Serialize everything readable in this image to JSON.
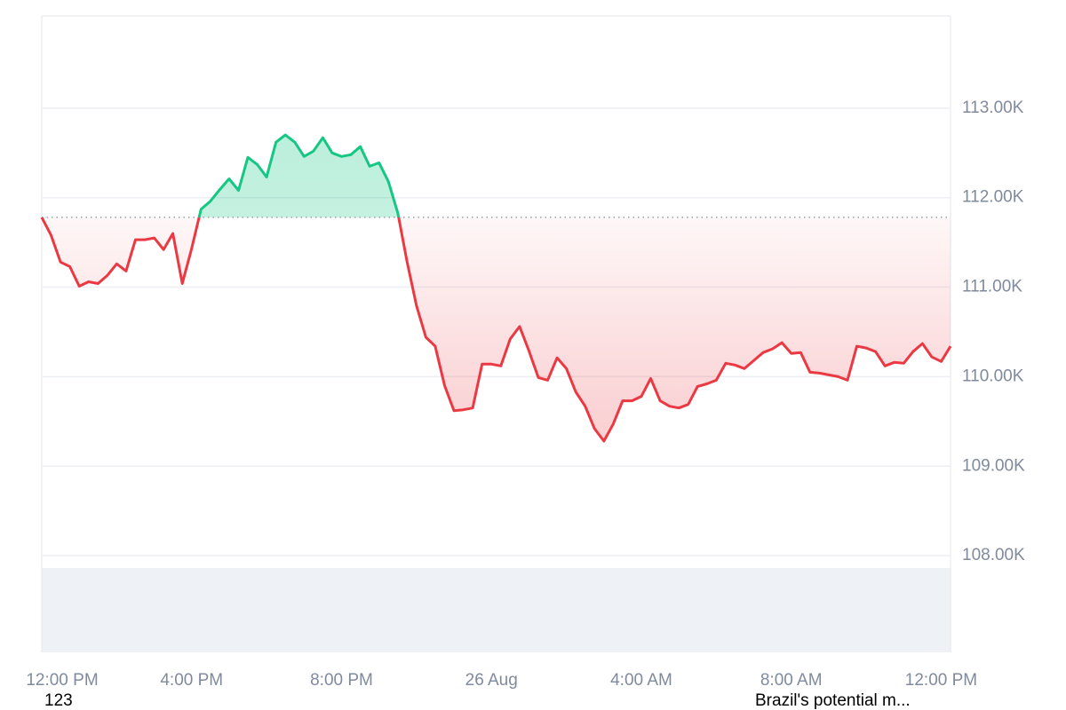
{
  "chart_data": {
    "type": "line",
    "baseline": 111.78,
    "up_color": "#16c784",
    "down_color": "#ea3943",
    "xlim": [
      0,
      24.25
    ],
    "xticks": [
      {
        "value": 0,
        "label": "12:00 PM"
      },
      {
        "value": 4,
        "label": "4:00 PM"
      },
      {
        "value": 8,
        "label": "8:00 PM"
      },
      {
        "value": 12,
        "label": "26 Aug"
      },
      {
        "value": 16,
        "label": "4:00 AM"
      },
      {
        "value": 20,
        "label": "8:00 AM"
      },
      {
        "value": 24,
        "label": "12:00 PM"
      }
    ],
    "ylim": [
      106.92,
      114.03
    ],
    "yticks": [
      {
        "value": 108,
        "label": "108.00K"
      },
      {
        "value": 109,
        "label": "109.00K"
      },
      {
        "value": 110,
        "label": "110.00K"
      },
      {
        "value": 111,
        "label": "111.00K"
      },
      {
        "value": 112,
        "label": "112.00K"
      },
      {
        "value": 113,
        "label": "113.00K"
      }
    ],
    "grid": true,
    "annotations": [
      "123",
      "Brazil's potential m..."
    ],
    "x": [
      0,
      0.25,
      0.5,
      0.75,
      1,
      1.25,
      1.5,
      1.75,
      2,
      2.25,
      2.5,
      2.75,
      3,
      3.25,
      3.5,
      3.75,
      4,
      4.25,
      4.5,
      4.75,
      5,
      5.25,
      5.5,
      5.75,
      6,
      6.25,
      6.5,
      6.75,
      7,
      7.25,
      7.5,
      7.75,
      8,
      8.25,
      8.5,
      8.75,
      9,
      9.25,
      9.5,
      9.75,
      10,
      10.25,
      10.5,
      10.75,
      11,
      11.25,
      11.5,
      11.75,
      12,
      12.25,
      12.5,
      12.75,
      13,
      13.25,
      13.5,
      13.75,
      14,
      14.25,
      14.5,
      14.75,
      15,
      15.25,
      15.5,
      15.75,
      16,
      16.25,
      16.5,
      16.75,
      17,
      17.25,
      17.5,
      17.75,
      18,
      18.25,
      18.5,
      18.75,
      19,
      19.25,
      19.5,
      19.75,
      20,
      20.25,
      20.5,
      20.75,
      21,
      21.25,
      21.5,
      21.75,
      22,
      22.25,
      22.5,
      22.75,
      23,
      23.25,
      23.5,
      23.75,
      24,
      24.25
    ],
    "values": [
      111.78,
      111.58,
      111.28,
      111.23,
      111.01,
      111.06,
      111.04,
      111.13,
      111.26,
      111.18,
      111.53,
      111.53,
      111.55,
      111.42,
      111.6,
      111.04,
      111.43,
      111.87,
      111.96,
      112.09,
      112.21,
      112.08,
      112.45,
      112.37,
      112.23,
      112.62,
      112.7,
      112.62,
      112.46,
      112.52,
      112.67,
      112.5,
      112.46,
      112.48,
      112.57,
      112.35,
      112.39,
      112.18,
      111.83,
      111.28,
      110.79,
      110.44,
      110.34,
      109.9,
      109.62,
      109.63,
      109.65,
      110.14,
      110.14,
      110.12,
      110.42,
      110.56,
      110.29,
      109.99,
      109.96,
      110.21,
      110.09,
      109.83,
      109.67,
      109.42,
      109.28,
      109.47,
      109.73,
      109.73,
      109.78,
      109.98,
      109.73,
      109.67,
      109.65,
      109.69,
      109.89,
      109.92,
      109.96,
      110.15,
      110.13,
      110.09,
      110.18,
      110.27,
      110.31,
      110.38,
      110.26,
      110.27,
      110.05,
      110.04,
      110.02,
      110.0,
      109.96,
      110.34,
      110.32,
      110.28,
      110.12,
      110.16,
      110.15,
      110.28,
      110.37,
      110.22,
      110.17,
      110.34
    ]
  }
}
